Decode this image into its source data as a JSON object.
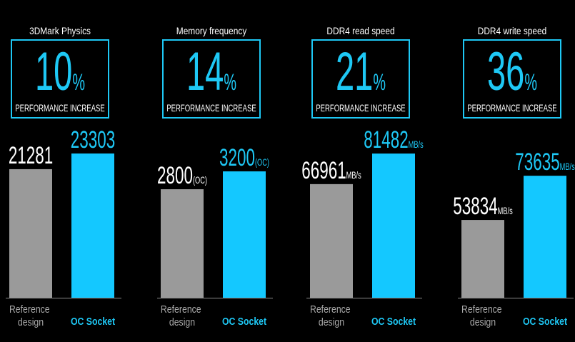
{
  "chart_data": [
    {
      "type": "bar",
      "title": "3DMark Physics",
      "increase": "10%",
      "subtitle": "PERFORMANCE INCREASE",
      "categories": [
        "Reference design",
        "OC Socket"
      ],
      "values": [
        21281,
        23303
      ],
      "colors": [
        "#9a9a9a",
        "#14c8ff"
      ],
      "ylim": [
        4700,
        23300
      ]
    },
    {
      "type": "bar",
      "title": "Memory frequency",
      "increase": "14%",
      "subtitle": "PERFORMANCE INCREASE",
      "categories": [
        "Reference design",
        "OC Socket"
      ],
      "values": [
        2800,
        3200
      ],
      "value_labels": [
        "2800(OC)",
        "3200(OC)"
      ],
      "colors": [
        "#9a9a9a",
        "#14c8ff"
      ],
      "ylim": [
        370,
        3600
      ]
    },
    {
      "type": "bar",
      "title": "DDR4 read speed",
      "increase": "21%",
      "subtitle": "PERFORMANCE INCREASE",
      "categories": [
        "Reference design",
        "OC Socket"
      ],
      "values": [
        66961,
        81482
      ],
      "value_labels": [
        "66961MB/s",
        "81482MB/s"
      ],
      "colors": [
        "#9a9a9a",
        "#14c8ff"
      ],
      "ylim": [
        13000,
        81500
      ]
    },
    {
      "type": "bar",
      "title": "DDR4 write speed",
      "increase": "36%",
      "subtitle": "PERFORMANCE INCREASE",
      "categories": [
        "Reference design",
        "OC Socket"
      ],
      "values": [
        53834,
        73635
      ],
      "value_labels": [
        "53834MB/s",
        "73635MB/s"
      ],
      "colors": [
        "#9a9a9a",
        "#14c8ff"
      ],
      "ylim": [
        19000,
        83600
      ]
    }
  ]
}
